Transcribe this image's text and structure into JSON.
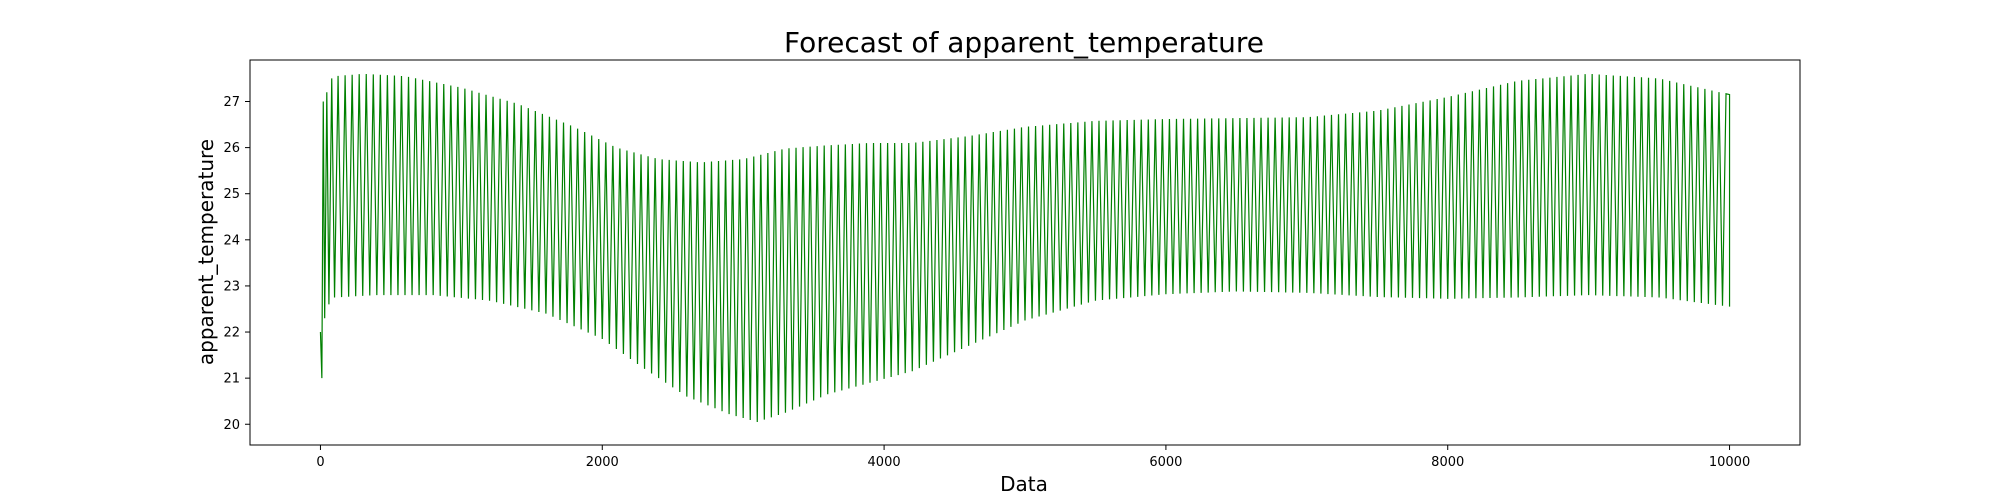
{
  "chart_data": {
    "type": "line",
    "title": "Forecast of apparent_temperature",
    "xlabel": "Data",
    "ylabel": "apparent_temperature",
    "xlim": [
      -500,
      10500
    ],
    "ylim": [
      19.55,
      27.9
    ],
    "xticks": [
      0,
      2000,
      4000,
      6000,
      8000,
      10000
    ],
    "yticks": [
      20,
      21,
      22,
      23,
      24,
      25,
      26,
      27
    ],
    "grid": false,
    "legend": "none",
    "series": [
      {
        "color": "#008000",
        "x_range": [
          0,
          10000
        ],
        "initial_points": [
          [
            0,
            22.0
          ],
          [
            10,
            21.0
          ],
          [
            20,
            27.0
          ],
          [
            30,
            22.3
          ],
          [
            45,
            27.2
          ],
          [
            60,
            22.6
          ],
          [
            80,
            27.5
          ],
          [
            100,
            22.75
          ]
        ],
        "upper_envelope": [
          [
            100,
            27.55
          ],
          [
            300,
            27.6
          ],
          [
            600,
            27.55
          ],
          [
            1000,
            27.3
          ],
          [
            1400,
            26.95
          ],
          [
            1800,
            26.45
          ],
          [
            2100,
            26.0
          ],
          [
            2400,
            25.75
          ],
          [
            2700,
            25.68
          ],
          [
            3000,
            25.75
          ],
          [
            3300,
            25.98
          ],
          [
            3600,
            26.05
          ],
          [
            3900,
            26.1
          ],
          [
            4200,
            26.1
          ],
          [
            4600,
            26.25
          ],
          [
            5000,
            26.45
          ],
          [
            5500,
            26.58
          ],
          [
            6000,
            26.62
          ],
          [
            6500,
            26.64
          ],
          [
            7000,
            26.66
          ],
          [
            7500,
            26.8
          ],
          [
            8000,
            27.1
          ],
          [
            8500,
            27.45
          ],
          [
            9000,
            27.6
          ],
          [
            9500,
            27.5
          ],
          [
            10000,
            27.15
          ]
        ],
        "lower_envelope": [
          [
            100,
            22.75
          ],
          [
            400,
            22.8
          ],
          [
            800,
            22.8
          ],
          [
            1200,
            22.68
          ],
          [
            1600,
            22.4
          ],
          [
            2000,
            21.85
          ],
          [
            2300,
            21.2
          ],
          [
            2600,
            20.6
          ],
          [
            2900,
            20.22
          ],
          [
            3100,
            20.05
          ],
          [
            3300,
            20.25
          ],
          [
            3600,
            20.65
          ],
          [
            3900,
            20.9
          ],
          [
            4200,
            21.15
          ],
          [
            4600,
            21.7
          ],
          [
            5000,
            22.25
          ],
          [
            5500,
            22.68
          ],
          [
            6000,
            22.82
          ],
          [
            6500,
            22.88
          ],
          [
            7000,
            22.85
          ],
          [
            7500,
            22.76
          ],
          [
            8000,
            22.72
          ],
          [
            8500,
            22.75
          ],
          [
            9000,
            22.8
          ],
          [
            9500,
            22.75
          ],
          [
            10000,
            22.55
          ]
        ],
        "cycle_length": 50,
        "final_value": 25.85
      }
    ]
  }
}
